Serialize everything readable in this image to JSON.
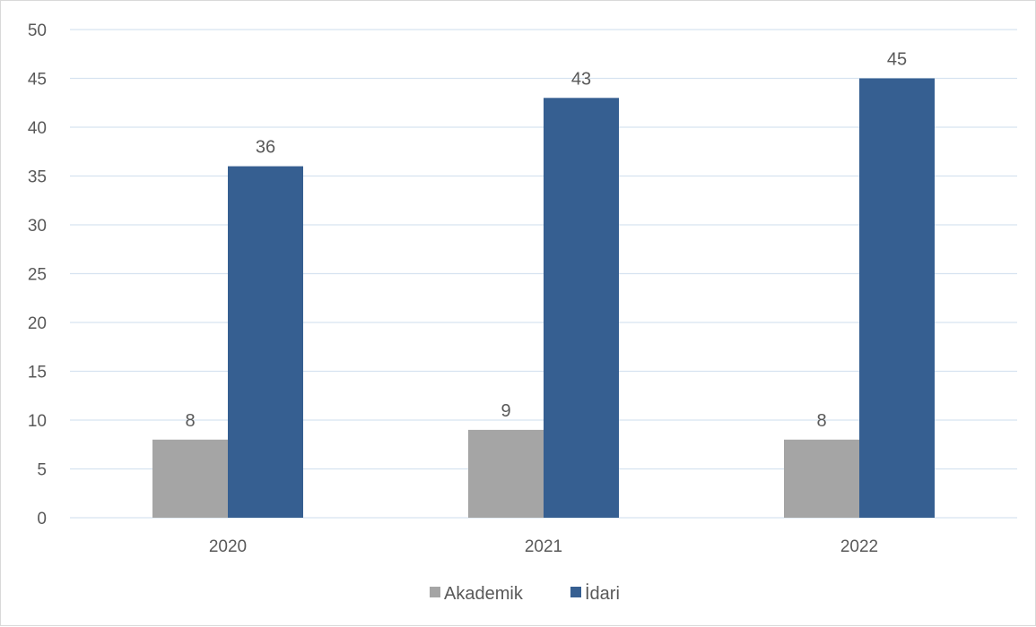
{
  "chart_data": {
    "type": "bar",
    "categories": [
      "2020",
      "2021",
      "2022"
    ],
    "series": [
      {
        "name": "Akademik",
        "values": [
          8,
          9,
          8
        ],
        "color": "#a5a5a5"
      },
      {
        "name": "İdari",
        "values": [
          36,
          43,
          45
        ],
        "color": "#365f91"
      }
    ],
    "ylim": [
      0,
      50
    ],
    "yticks": [
      0,
      5,
      10,
      15,
      20,
      25,
      30,
      35,
      40,
      45,
      50
    ],
    "grid": true,
    "legend_position": "bottom",
    "data_labels": true,
    "gridline_color": "#d6e3f0",
    "label_color": "#595959"
  }
}
